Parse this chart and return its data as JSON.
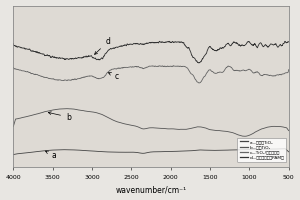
{
  "xlabel": "wavenumber/cm⁻¹",
  "legend_labels": [
    "a—未改性TiO₂",
    "b—改性TiO₂",
    "c—TiO₂/聚丙烯酰胺",
    "d—聚丙烯酰胺（PAM）"
  ],
  "curve_colors": [
    "#444444",
    "#555555",
    "#666666",
    "#333333"
  ],
  "background_color": "#e8e6e2",
  "plot_bg": "#dedad4",
  "xticks": [
    4000,
    3500,
    3000,
    2500,
    2000,
    1500,
    1000,
    500
  ],
  "curve_labels": [
    "a",
    "b",
    "c",
    "d"
  ]
}
